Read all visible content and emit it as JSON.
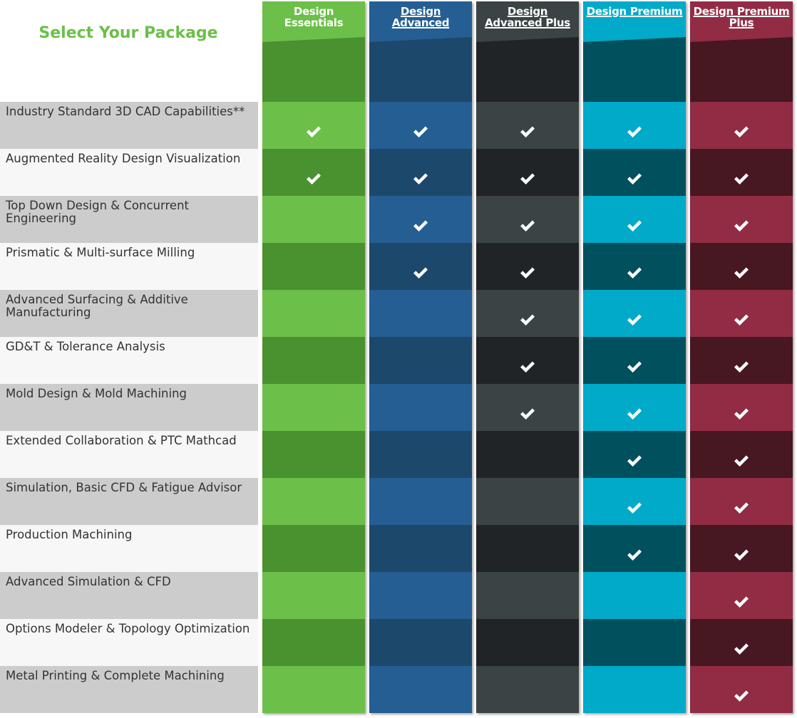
{
  "title": "Select Your Package",
  "features": [
    "Industry Standard 3D CAD Capabilities**",
    "Augmented Reality Design Visualization",
    "Top Down Design & Concurrent Engineering",
    "Prismatic & Multi-surface Milling",
    "Advanced Surfacing & Additive Manufacturing",
    "GD&T & Tolerance Analysis",
    "Mold Design & Mold Machining",
    "Extended Collaboration & PTC Mathcad",
    "Simulation, Basic CFD & Fatigue Advisor",
    "Production Machining",
    "Advanced Simulation & CFD",
    "Options Modeler & Topology Optimization",
    "Metal Printing & Complete Machining"
  ],
  "packages": [
    {
      "name_lines": [
        "Design",
        "Essentials"
      ],
      "linked": false,
      "colors": {
        "light": "#6cbf48",
        "dark": "#4a9130",
        "head_top": "#6cbf48"
      },
      "included": [
        true,
        true,
        false,
        false,
        false,
        false,
        false,
        false,
        false,
        false,
        false,
        false,
        false
      ]
    },
    {
      "name_lines": [
        "Design",
        "Advanced"
      ],
      "linked": true,
      "colors": {
        "light": "#245e93",
        "dark": "#1c486c",
        "head_top": "#245e93"
      },
      "included": [
        true,
        true,
        true,
        true,
        false,
        false,
        false,
        false,
        false,
        false,
        false,
        false,
        false
      ]
    },
    {
      "name_lines": [
        "Design",
        "Advanced Plus"
      ],
      "linked": true,
      "colors": {
        "light": "#3b4345",
        "dark": "#212426",
        "head_top": "#3b4345"
      },
      "included": [
        true,
        true,
        true,
        true,
        true,
        true,
        true,
        false,
        false,
        false,
        false,
        false,
        false
      ]
    },
    {
      "name_lines": [
        "Design Premium"
      ],
      "linked": true,
      "colors": {
        "light": "#00aac8",
        "dark": "#00505e",
        "head_top": "#00aac8"
      },
      "included": [
        true,
        true,
        true,
        true,
        true,
        true,
        true,
        true,
        true,
        true,
        false,
        false,
        false
      ]
    },
    {
      "name_lines": [
        "Design Premium",
        "Plus"
      ],
      "linked": true,
      "colors": {
        "light": "#912c44",
        "dark": "#471722",
        "head_top": "#912c44"
      },
      "included": [
        true,
        true,
        true,
        true,
        true,
        true,
        true,
        true,
        true,
        true,
        true,
        true,
        true
      ]
    }
  ],
  "icons": {
    "included": "checkmark-icon"
  }
}
